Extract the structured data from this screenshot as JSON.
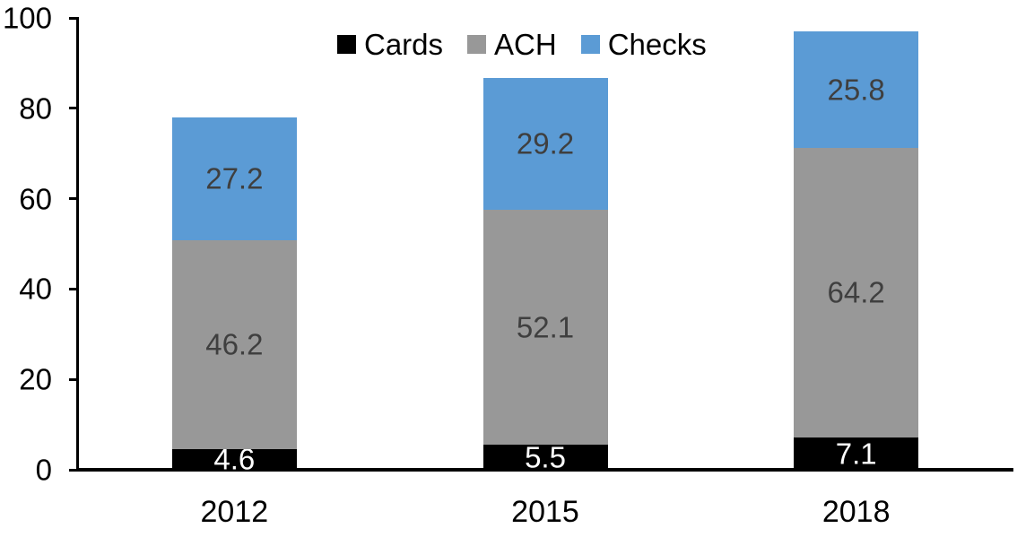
{
  "chart_data": {
    "type": "bar",
    "stacked": true,
    "title": "",
    "xlabel": "",
    "ylabel": "",
    "categories": [
      "2012",
      "2015",
      "2018"
    ],
    "series": [
      {
        "name": "Cards",
        "color": "#000000",
        "label_color": "#ffffff",
        "values": [
          4.6,
          5.5,
          7.1
        ]
      },
      {
        "name": "ACH",
        "color": "#989898",
        "label_color": "#3f3f3f",
        "values": [
          46.2,
          52.1,
          64.2
        ]
      },
      {
        "name": "Checks",
        "color": "#5b9bd5",
        "label_color": "#3f3f3f",
        "values": [
          27.2,
          29.2,
          25.8
        ]
      }
    ],
    "ylim": [
      0,
      100
    ],
    "yticks": [
      0,
      20,
      40,
      60,
      80,
      100
    ],
    "legend_position": "top-center",
    "legend_labels": [
      "Cards",
      "ACH",
      "Checks"
    ],
    "grid": false,
    "axis_color": "#000000"
  }
}
